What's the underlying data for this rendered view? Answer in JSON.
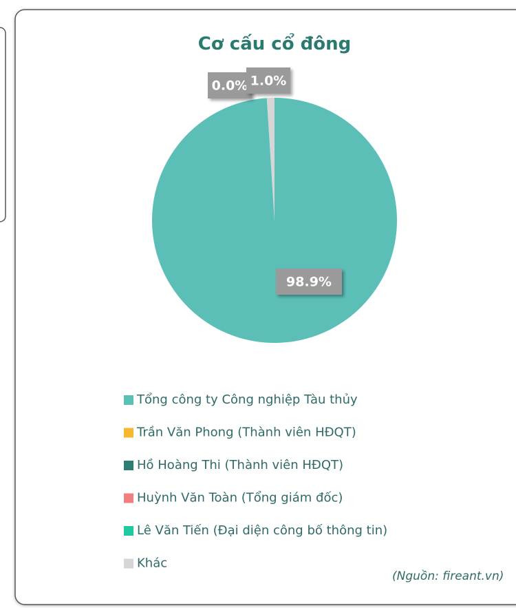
{
  "chart_data": {
    "type": "pie",
    "title": "Cơ cấu cổ đông",
    "categories": [
      "Tổng công ty Công nghiệp Tàu thủy",
      "Trần Văn Phong (Thành viên HĐQT)",
      "Hồ Hoàng Thi (Thành viên HĐQT)",
      "Huỳnh Văn Toàn (Tổng giám đốc)",
      "Lê Văn Tiến (Đại diện công bố thông tin)",
      "Khác"
    ],
    "values": [
      98.9,
      0.0,
      0.0,
      0.0,
      0.0,
      1.0
    ],
    "value_labels": [
      "98.9%",
      null,
      null,
      null,
      "0.0%",
      "1.0%"
    ],
    "colors": [
      "#5bbfb8",
      "#f7b731",
      "#2e7d73",
      "#f08080",
      "#1fc9a0",
      "#d6d6d6"
    ],
    "legend": "bottom",
    "source": "(Nguồn: fireant.vn)"
  }
}
